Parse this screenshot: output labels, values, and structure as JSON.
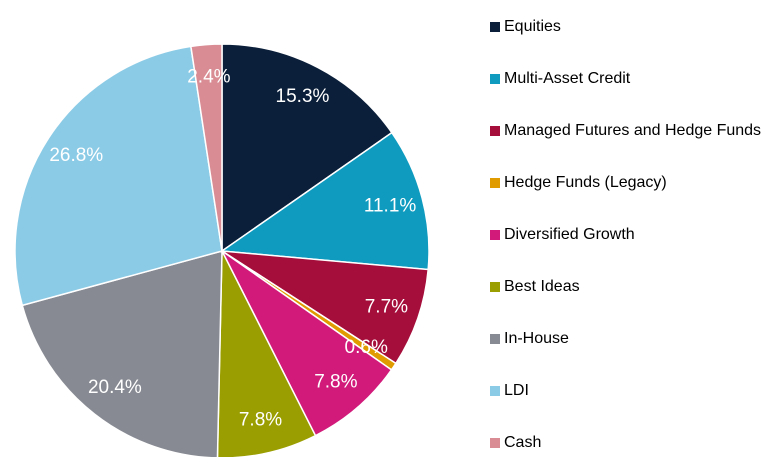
{
  "chart_data": {
    "type": "pie",
    "categories": [
      "Equities",
      "Multi-Asset Credit",
      "Managed Futures and Hedge Funds",
      "Hedge Funds (Legacy)",
      "Diversified Growth",
      "Best Ideas",
      "In-House",
      "LDI",
      "Cash"
    ],
    "values": [
      15.3,
      11.1,
      7.7,
      0.6,
      7.8,
      7.8,
      20.4,
      26.8,
      2.4
    ],
    "value_labels": [
      "15.3%",
      "11.1%",
      "7.7%",
      "0.6%",
      "7.8%",
      "7.8%",
      "20.4%",
      "26.8%",
      "2.4%"
    ],
    "colors": [
      "#0b1f3a",
      "#0e9bbf",
      "#a50d3a",
      "#e09b00",
      "#d11a7a",
      "#9a9e00",
      "#878a92",
      "#8ccbe6",
      "#d98c93"
    ],
    "legend": "right"
  }
}
